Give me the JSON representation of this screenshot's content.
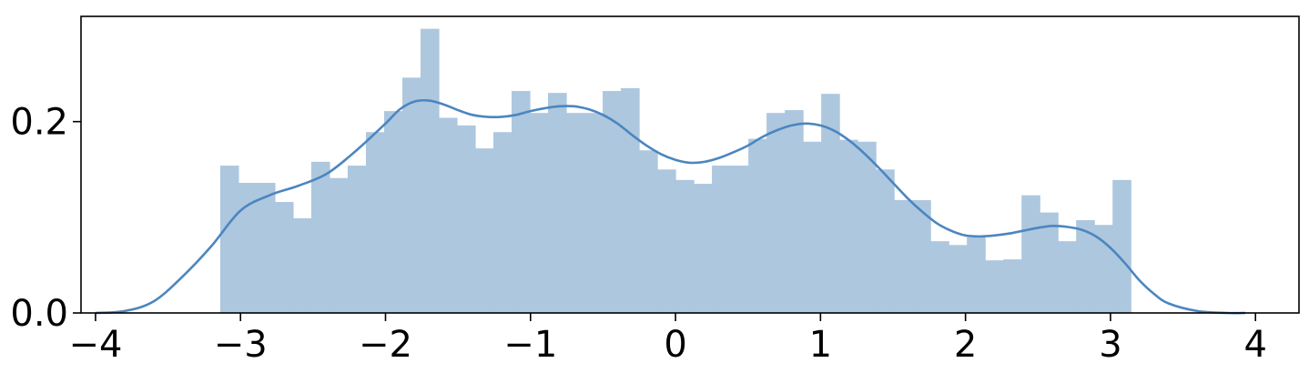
{
  "chart_data": {
    "type": "bar",
    "title": "",
    "xlabel": "",
    "ylabel": "",
    "xlim": [
      -4.1,
      4.3
    ],
    "ylim": [
      0,
      0.31
    ],
    "grid": false,
    "legend": "none",
    "x_ticks": [
      {
        "value": -4,
        "label": "−4"
      },
      {
        "value": -3,
        "label": "−3"
      },
      {
        "value": -2,
        "label": "−2"
      },
      {
        "value": -1,
        "label": "−1"
      },
      {
        "value": 0,
        "label": "0"
      },
      {
        "value": 1,
        "label": "1"
      },
      {
        "value": 2,
        "label": "2"
      },
      {
        "value": 3,
        "label": "3"
      },
      {
        "value": 4,
        "label": "4"
      }
    ],
    "y_ticks": [
      {
        "value": 0,
        "label": "0.0"
      },
      {
        "value": 0.2,
        "label": "0.2"
      }
    ],
    "histogram": {
      "bin_start": -3.14,
      "bin_width": 0.1256,
      "densities": [
        0.154,
        0.136,
        0.136,
        0.116,
        0.099,
        0.158,
        0.141,
        0.154,
        0.189,
        0.211,
        0.246,
        0.297,
        0.204,
        0.196,
        0.172,
        0.189,
        0.232,
        0.209,
        0.23,
        0.209,
        0.209,
        0.232,
        0.235,
        0.17,
        0.15,
        0.139,
        0.135,
        0.154,
        0.154,
        0.182,
        0.209,
        0.212,
        0.179,
        0.229,
        0.181,
        0.179,
        0.15,
        0.118,
        0.118,
        0.075,
        0.071,
        0.079,
        0.055,
        0.056,
        0.123,
        0.105,
        0.075,
        0.097,
        0.092,
        0.139
      ],
      "color": "#adc7df"
    },
    "kde": {
      "color": "#4b86bf",
      "x": [
        -4.0,
        -3.8,
        -3.6,
        -3.4,
        -3.2,
        -3.0,
        -2.8,
        -2.6,
        -2.4,
        -2.2,
        -2.0,
        -1.9,
        -1.8,
        -1.7,
        -1.6,
        -1.5,
        -1.4,
        -1.3,
        -1.2,
        -1.1,
        -1.0,
        -0.9,
        -0.8,
        -0.7,
        -0.6,
        -0.5,
        -0.4,
        -0.3,
        -0.2,
        -0.1,
        0.0,
        0.1,
        0.2,
        0.3,
        0.4,
        0.5,
        0.6,
        0.7,
        0.8,
        0.9,
        1.0,
        1.1,
        1.2,
        1.3,
        1.4,
        1.5,
        1.6,
        1.7,
        1.8,
        1.9,
        2.0,
        2.1,
        2.2,
        2.3,
        2.4,
        2.5,
        2.6,
        2.7,
        2.8,
        2.9,
        3.0,
        3.1,
        3.2,
        3.3,
        3.4,
        3.6,
        3.8,
        3.93
      ],
      "y": [
        0.0,
        0.002,
        0.012,
        0.038,
        0.07,
        0.107,
        0.123,
        0.133,
        0.146,
        0.17,
        0.198,
        0.213,
        0.221,
        0.222,
        0.218,
        0.212,
        0.207,
        0.205,
        0.205,
        0.207,
        0.211,
        0.214,
        0.216,
        0.216,
        0.213,
        0.207,
        0.198,
        0.186,
        0.175,
        0.166,
        0.16,
        0.157,
        0.158,
        0.162,
        0.168,
        0.175,
        0.184,
        0.191,
        0.196,
        0.198,
        0.196,
        0.19,
        0.18,
        0.167,
        0.152,
        0.136,
        0.12,
        0.106,
        0.094,
        0.086,
        0.081,
        0.08,
        0.081,
        0.083,
        0.086,
        0.089,
        0.091,
        0.09,
        0.087,
        0.08,
        0.068,
        0.052,
        0.034,
        0.02,
        0.01,
        0.002,
        0.0,
        0.0
      ]
    }
  }
}
